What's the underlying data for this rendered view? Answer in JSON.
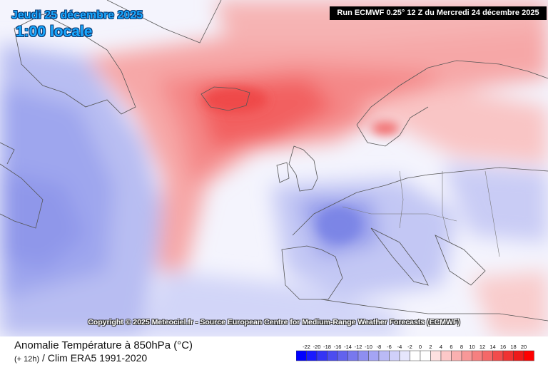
{
  "header": {
    "date": "Jeudi 25 décembre 2025",
    "hour": "1:00 locale",
    "run": "Run ECMWF 0.25° 12 Z du Mercredi 24 décembre 2025"
  },
  "copyright": "Copyright © 2025 Meteociel.fr - Source European Centre for Medium-Range Weather Forecasts (ECMWF)",
  "footer": {
    "title_line1": "Anomalie Température à 850hPa (°C)",
    "title_line2_small": "(+ 12h)",
    "title_line2": " / Clim ERA5 1991-2020"
  },
  "legend": {
    "labels": [
      "-22",
      "-20",
      "-18",
      "-16",
      "-14",
      "-12",
      "-10",
      "-8",
      "-6",
      "-4",
      "-2",
      "0",
      "2",
      "4",
      "6",
      "8",
      "10",
      "12",
      "14",
      "16",
      "18",
      "20"
    ],
    "colors": [
      "#0000ff",
      "#1a1aff",
      "#3434f5",
      "#4c4cf0",
      "#6262ee",
      "#7878ee",
      "#8e8ef0",
      "#a4a4f4",
      "#babaf6",
      "#d0d0fa",
      "#e6e6fc",
      "#ffffff",
      "#ffffff",
      "#fde0e0",
      "#fcc8c8",
      "#fab0b0",
      "#f89898",
      "#f68080",
      "#f46868",
      "#f24c4c",
      "#f03232",
      "#ee1a1a",
      "#ff0000"
    ]
  }
}
